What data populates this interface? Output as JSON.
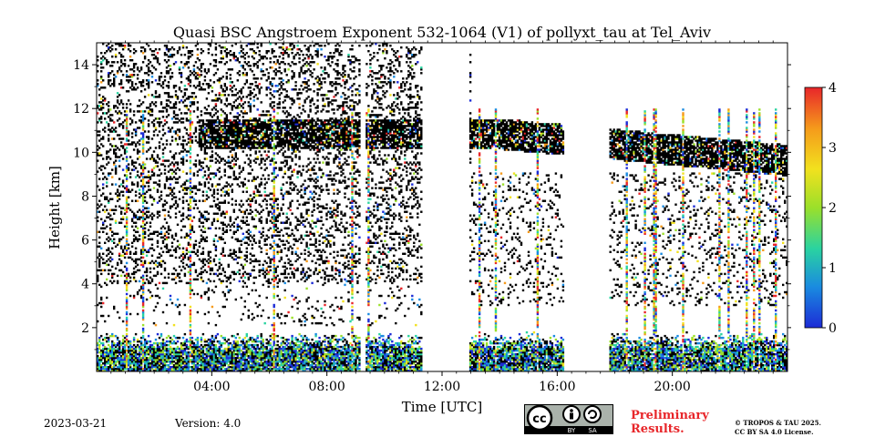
{
  "header": {
    "title": "Quasi BSC Angstroem Exponent 532-1064 (V1) of pollyxt_tau at Tel_Aviv"
  },
  "chart_data": {
    "type": "heatmap",
    "title": "Quasi BSC Angstroem Exponent 532-1064 (V1) of pollyxt_tau at Tel_Aviv",
    "xlabel": "Time [UTC]",
    "ylabel": "Height [km]",
    "xlim": [
      0,
      24
    ],
    "ylim": [
      0,
      15
    ],
    "x_ticks": [
      {
        "value": 4,
        "label": "04:00"
      },
      {
        "value": 8,
        "label": "08:00"
      },
      {
        "value": 12,
        "label": "12:00"
      },
      {
        "value": 16,
        "label": "16:00"
      },
      {
        "value": 20,
        "label": "20:00"
      }
    ],
    "y_ticks": [
      {
        "value": 2,
        "label": "2"
      },
      {
        "value": 4,
        "label": "4"
      },
      {
        "value": 6,
        "label": "6"
      },
      {
        "value": 8,
        "label": "8"
      },
      {
        "value": 10,
        "label": "10"
      },
      {
        "value": 12,
        "label": "12"
      },
      {
        "value": 14,
        "label": "14"
      }
    ],
    "colorbar": {
      "range": [
        0,
        4
      ],
      "ticks": [
        "0",
        "1",
        "2",
        "3",
        "4"
      ],
      "colormap": "jet",
      "colors": [
        "#1c2bd6",
        "#1a8be0",
        "#2ad3a0",
        "#9be02a",
        "#f2e11e",
        "#f59a1b",
        "#e8262a"
      ]
    },
    "saturated_color": "#000000",
    "features": {
      "cloud_layer_km": [
        9.5,
        11.5
      ],
      "boundary_layer_top_km": 1.6,
      "data_gaps_utc": [
        [
          9.1,
          9.3
        ],
        [
          11.3,
          12.9
        ],
        [
          16.2,
          17.8
        ]
      ]
    }
  },
  "footer": {
    "date": "2023-03-21",
    "version": "Version: 4.0",
    "preliminary_line1": "Preliminary",
    "preliminary_line2": "Results.",
    "copyright_line1": "© TROPOS & TAU 2025.",
    "copyright_line2": "CC BY SA 4.0 License.",
    "cc_by": "BY",
    "cc_sa": "SA"
  }
}
